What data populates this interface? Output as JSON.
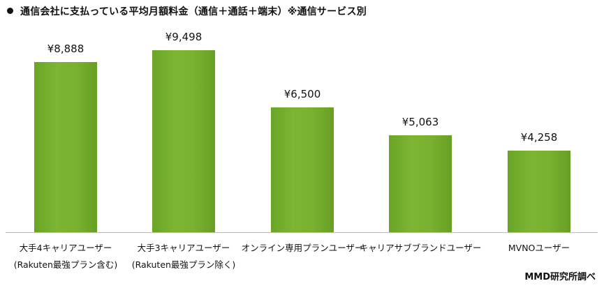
{
  "chart_data": {
    "type": "bar",
    "title": "通信会社に支払っている平均月額料金（通信＋通話＋端末）※通信サービス別",
    "categories": [
      [
        "大手4キャリアユーザー",
        "(Rakuten最強プラン含む)"
      ],
      [
        "大手3キャリアユーザー",
        "(Rakuten最強プラン除く)"
      ],
      [
        "オンライン専用プランユーザー"
      ],
      [
        "キャリアサブブランドユーザー"
      ],
      [
        "MVNOユーザー"
      ]
    ],
    "values": [
      8888,
      9498,
      6500,
      5063,
      4258
    ],
    "value_labels": [
      "¥8,888",
      "¥9,498",
      "¥6,500",
      "¥5,063",
      "¥4,258"
    ],
    "xlabel": "",
    "ylabel": "",
    "ylim": [
      0,
      9500
    ],
    "grid": false,
    "legend": "none",
    "bar_color": "#76b02c",
    "source": "MMD研究所調べ"
  },
  "header": {
    "title": "通信会社に支払っている平均月額料金（通信＋通話＋端末）※通信サービス別"
  },
  "footer": {
    "source": "MMD研究所調べ"
  }
}
